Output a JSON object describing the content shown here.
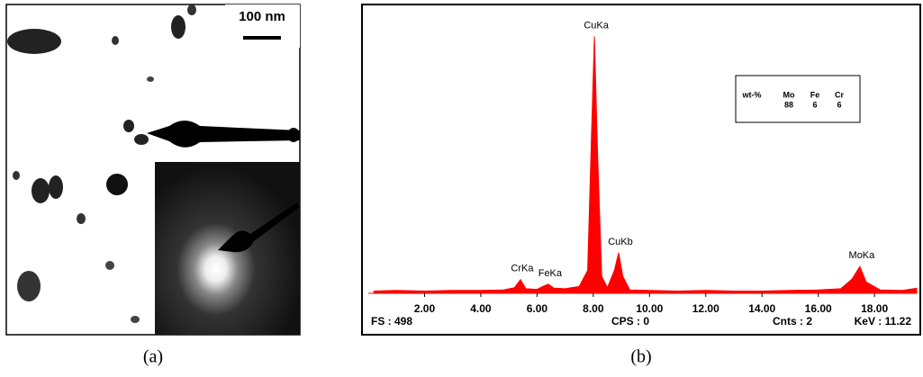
{
  "panel_a": {
    "scale_bar": "100 nm",
    "caption": "(a)"
  },
  "panel_b_caption": "(b)",
  "chart_data": {
    "type": "area",
    "color": "#ff0000",
    "x": [
      0.2,
      1,
      2,
      3,
      4,
      4.8,
      5.2,
      5.41,
      5.6,
      6.0,
      6.2,
      6.4,
      6.6,
      7.0,
      7.5,
      7.8,
      7.95,
      8.04,
      8.15,
      8.3,
      8.5,
      8.75,
      8.9,
      9.05,
      9.3,
      10,
      11,
      12,
      13,
      14,
      15,
      16,
      16.8,
      17.2,
      17.48,
      17.7,
      18.2,
      19,
      19.5
    ],
    "values": [
      4,
      5,
      4,
      5,
      5,
      6,
      10,
      24,
      8,
      7,
      12,
      16,
      9,
      8,
      12,
      40,
      300,
      450,
      250,
      30,
      10,
      40,
      71,
      30,
      6,
      5,
      4,
      5,
      4,
      4,
      5,
      6,
      8,
      25,
      47,
      20,
      6,
      5,
      9
    ],
    "xlim": [
      0,
      19.5
    ],
    "ylim": [
      0,
      498
    ],
    "xticks": [
      {
        "value": 2,
        "label": "2.00"
      },
      {
        "value": 4,
        "label": "4.00"
      },
      {
        "value": 6,
        "label": "6.00"
      },
      {
        "value": 8,
        "label": "8.00"
      },
      {
        "value": 10,
        "label": "10.00"
      },
      {
        "value": 12,
        "label": "12.00"
      },
      {
        "value": 14,
        "label": "14.00"
      },
      {
        "value": 16,
        "label": "16.00"
      },
      {
        "value": 18,
        "label": "18.00"
      }
    ],
    "peak_labels": [
      {
        "text": "CrKa",
        "index": 7
      },
      {
        "text": "FeKa",
        "index": 11
      },
      {
        "text": "CuKa",
        "index": 17
      },
      {
        "text": "CuKb",
        "index": 22
      },
      {
        "text": "MoKa",
        "index": 34
      }
    ],
    "footer": [
      "FS : 498",
      "CPS : 0",
      "Cnts : 2",
      "KeV : 11.22"
    ],
    "inset_table": {
      "header": [
        "wt-%",
        "Mo",
        "Fe",
        "Cr"
      ],
      "row": [
        "88",
        "6",
        "6"
      ]
    }
  }
}
